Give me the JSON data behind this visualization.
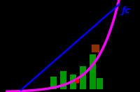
{
  "background_color": "#000000",
  "magenta_color": "#ff00ff",
  "blue_color": "#0000ff",
  "green_color": "#00aa00",
  "brown_color": "#8B3000",
  "red_color": "#ff0000",
  "label_text": "ƒc",
  "label_color": "#0000ff",
  "label_fontsize": 9,
  "figsize": [
    2.0,
    1.32
  ],
  "dpi": 100,
  "xlim": [
    0.0,
    10.0
  ],
  "ylim": [
    0.0,
    10.0
  ]
}
